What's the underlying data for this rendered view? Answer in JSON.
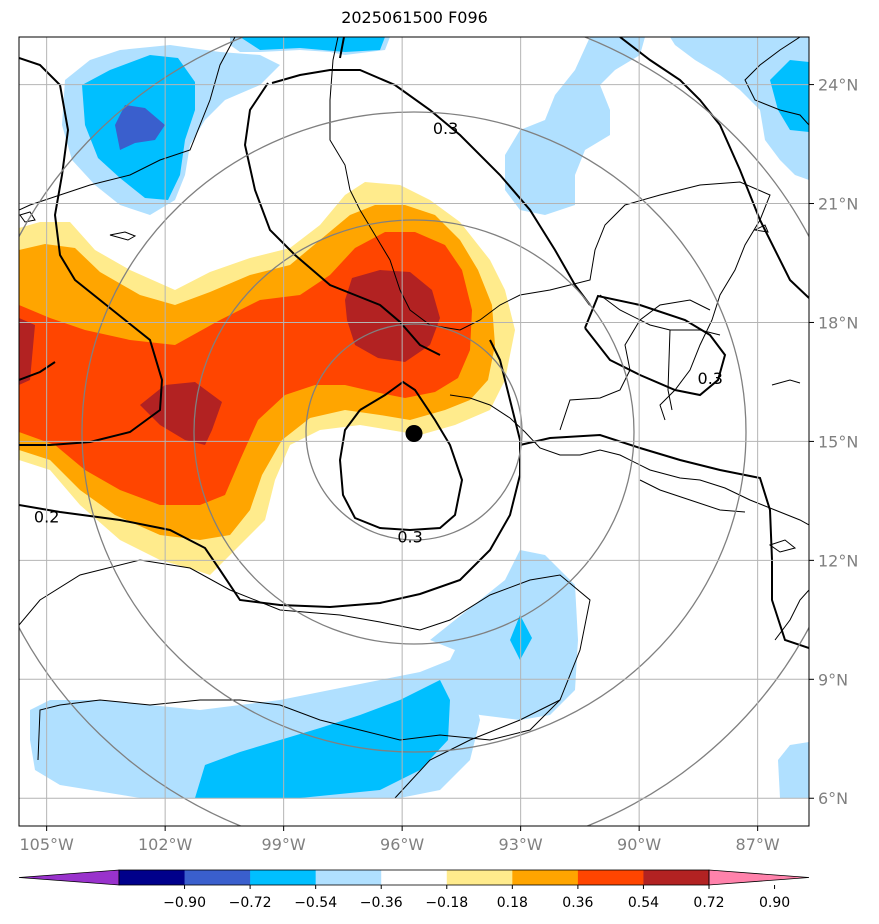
{
  "chart_data": {
    "type": "heatmap",
    "title": "2025061500 F096",
    "x_ticks": [
      "105°W",
      "102°W",
      "99°W",
      "96°W",
      "93°W",
      "90°W",
      "87°W"
    ],
    "y_ticks": [
      "24°N",
      "21°N",
      "18°N",
      "15°N",
      "12°N",
      "9°N",
      "6°N"
    ],
    "xlim_deg_w": [
      105.7,
      85.7
    ],
    "ylim_deg_n": [
      5.3,
      25.2
    ],
    "grid": true,
    "colorbar": {
      "position": "bottom",
      "extend": "both",
      "ticks": [
        "-0.90",
        "-0.72",
        "-0.54",
        "-0.36",
        "-0.18",
        "0.18",
        "0.36",
        "0.54",
        "0.72",
        "0.90"
      ],
      "colors": [
        "#9932cc",
        "#00008b",
        "#3a5fcd",
        "#00bfff",
        "#b0e0ff",
        "#ffffff",
        "#ffeb8c",
        "#ffa500",
        "#ff4500",
        "#b22222",
        "#ff82ab"
      ]
    },
    "contour_labels": [
      {
        "text": "0.3",
        "lon": -94.9,
        "lat": 22.9
      },
      {
        "text": "0.3",
        "lon": -88.2,
        "lat": 16.6
      },
      {
        "text": "0.2",
        "lon": -105.0,
        "lat": 13.1
      },
      {
        "text": "0.3",
        "lon": -95.8,
        "lat": 12.6
      }
    ],
    "center_marker": {
      "lon": -95.7,
      "lat": 15.2
    }
  }
}
